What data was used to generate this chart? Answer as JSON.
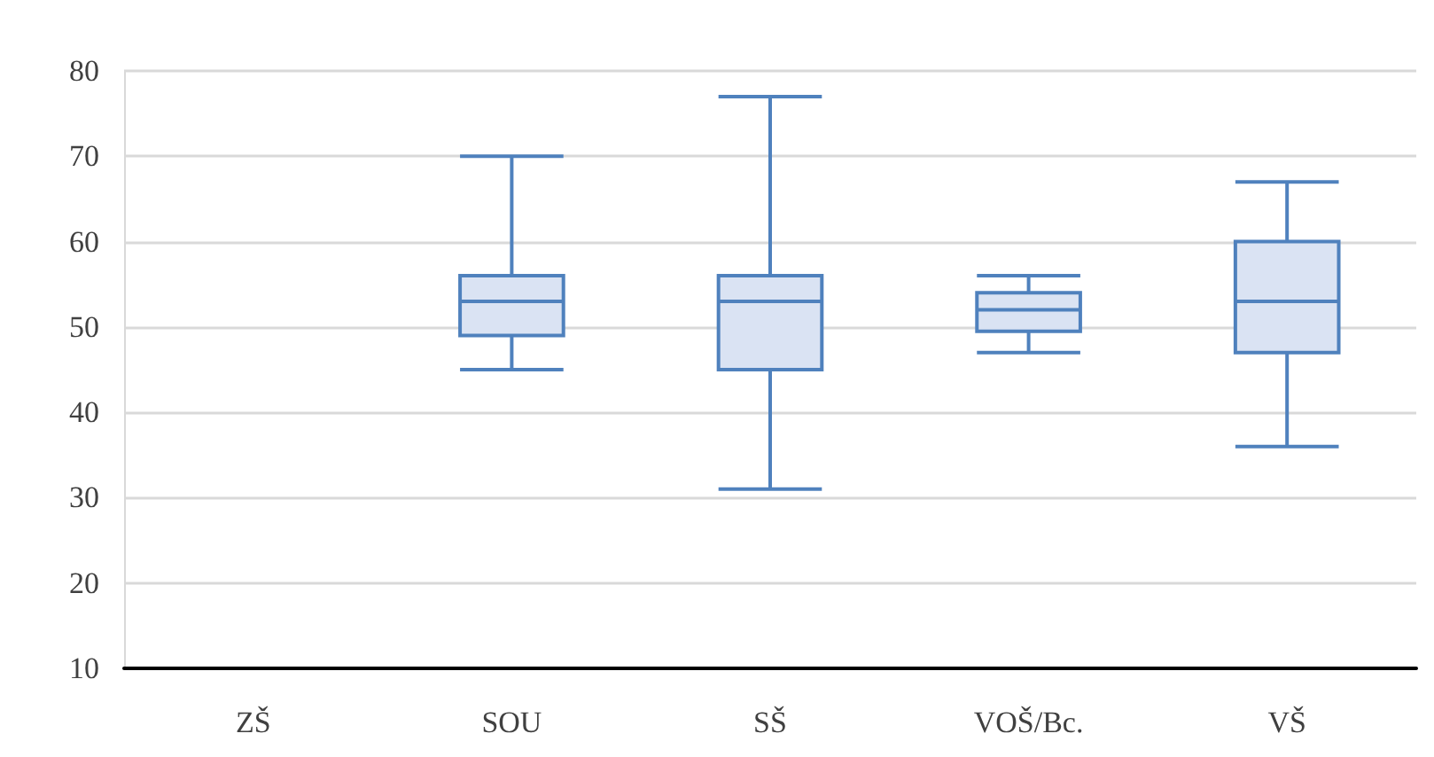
{
  "chart_data": {
    "type": "box",
    "categories": [
      "ZŠ",
      "SOU",
      "SŠ",
      "VOŠ/Bc.",
      "VŠ"
    ],
    "boxes": [
      null,
      {
        "low": 45,
        "q1": 49,
        "median": 53,
        "q3": 56,
        "high": 70
      },
      {
        "low": 31,
        "q1": 45,
        "median": 53,
        "q3": 56,
        "high": 77
      },
      {
        "low": 47,
        "q1": 49.5,
        "median": 52,
        "q3": 54,
        "high": 56
      },
      {
        "low": 36,
        "q1": 47,
        "median": 53,
        "q3": 60,
        "high": 67
      }
    ],
    "color": "#4f81bd",
    "ylim": [
      10,
      80
    ],
    "yticks": [
      10,
      20,
      30,
      40,
      50,
      60,
      70,
      80
    ],
    "grid": "y"
  }
}
